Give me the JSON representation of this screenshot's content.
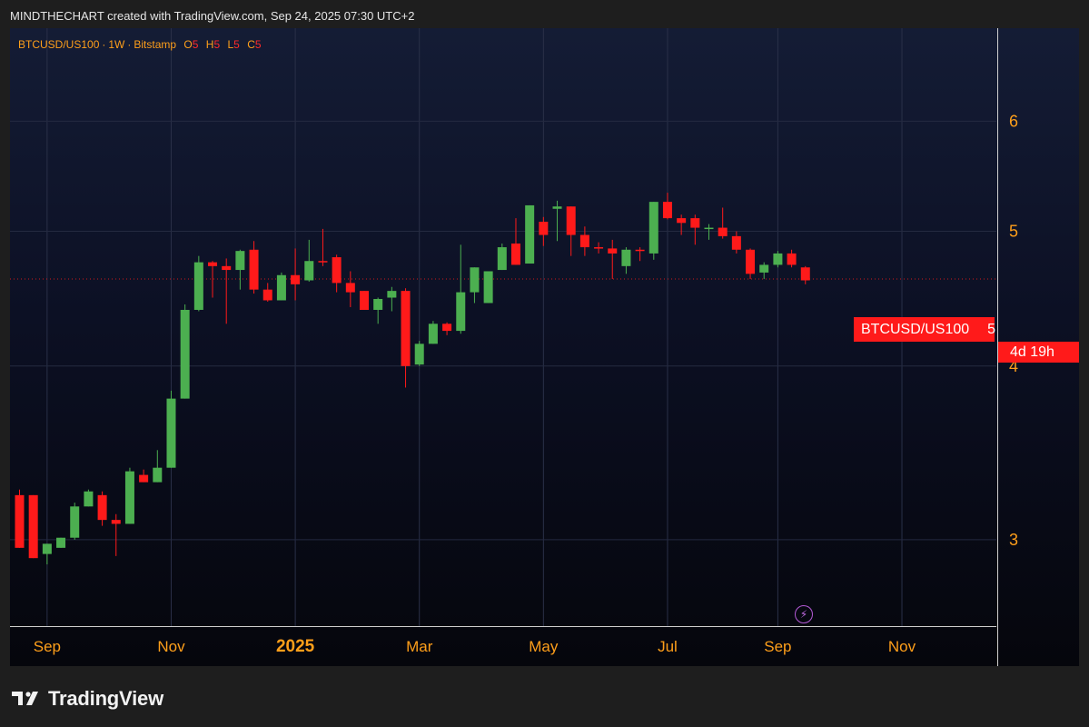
{
  "header": {
    "text": "MINDTHECHART created with TradingView.com, Sep 24, 2025 07:30 UTC+2"
  },
  "legend": {
    "symbol": "BTCUSD/US100",
    "interval": "1W",
    "exchange": "Bitstamp",
    "ohlc": [
      {
        "key": "O",
        "value": "5"
      },
      {
        "key": "H",
        "value": "5"
      },
      {
        "key": "L",
        "value": "5"
      },
      {
        "key": "C",
        "value": "5"
      }
    ]
  },
  "price_label": {
    "symbol": "BTCUSD/US100",
    "value": "5",
    "countdown": "4d 19h"
  },
  "footer": {
    "brand": "TradingView",
    "logo_icon": "tradingview-logo-icon"
  },
  "colors": {
    "up": "#4caf50",
    "down": "#ff1a1a",
    "axis_text": "#ff9f1a",
    "accent": "#ff1a1a"
  },
  "chart_data": {
    "type": "candlestick",
    "interval": "1W",
    "y_scale": "log",
    "y_ticks": [
      3,
      4,
      5,
      6
    ],
    "ylim": [
      2.6,
      7.0
    ],
    "x_ticks": [
      {
        "label": "Sep",
        "index": 2,
        "bold": false
      },
      {
        "label": "Nov",
        "index": 11,
        "bold": false
      },
      {
        "label": "2025",
        "index": 20,
        "bold": true
      },
      {
        "label": "Mar",
        "index": 29,
        "bold": false
      },
      {
        "label": "May",
        "index": 38,
        "bold": false
      },
      {
        "label": "Jul",
        "index": 47,
        "bold": false
      },
      {
        "label": "Sep",
        "index": 55,
        "bold": false
      },
      {
        "label": "Nov",
        "index": 64,
        "bold": false
      }
    ],
    "last_price": 4.62,
    "candles": [
      [
        3.23,
        2.96,
        3.26,
        2.96
      ],
      [
        3.23,
        2.91,
        3.23,
        2.91
      ],
      [
        2.93,
        2.98,
        2.98,
        2.88
      ],
      [
        2.96,
        3.01,
        3.01,
        2.96
      ],
      [
        3.01,
        3.17,
        3.19,
        3.0
      ],
      [
        3.17,
        3.25,
        3.26,
        3.17
      ],
      [
        3.23,
        3.1,
        3.25,
        3.07
      ],
      [
        3.1,
        3.08,
        3.13,
        2.92
      ],
      [
        3.08,
        3.36,
        3.38,
        3.08
      ],
      [
        3.34,
        3.3,
        3.37,
        3.3
      ],
      [
        3.3,
        3.38,
        3.48,
        3.3
      ],
      [
        3.38,
        3.79,
        3.84,
        3.38
      ],
      [
        3.79,
        4.39,
        4.43,
        3.79
      ],
      [
        4.39,
        4.75,
        4.8,
        4.38
      ],
      [
        4.75,
        4.72,
        4.76,
        4.48
      ],
      [
        4.72,
        4.69,
        4.78,
        4.29
      ],
      [
        4.69,
        4.84,
        4.85,
        4.54
      ],
      [
        4.85,
        4.54,
        4.92,
        4.51
      ],
      [
        4.54,
        4.46,
        4.59,
        4.45
      ],
      [
        4.46,
        4.65,
        4.67,
        4.46
      ],
      [
        4.65,
        4.58,
        4.86,
        4.46
      ],
      [
        4.61,
        4.76,
        4.93,
        4.6
      ],
      [
        4.76,
        4.75,
        5.02,
        4.72
      ],
      [
        4.79,
        4.59,
        4.81,
        4.52
      ],
      [
        4.59,
        4.52,
        4.68,
        4.41
      ],
      [
        4.53,
        4.39,
        4.53,
        4.39
      ],
      [
        4.39,
        4.47,
        4.48,
        4.29
      ],
      [
        4.48,
        4.53,
        4.56,
        4.38
      ],
      [
        4.53,
        4.0,
        4.55,
        3.86
      ],
      [
        4.01,
        4.15,
        4.17,
        4.0
      ],
      [
        4.15,
        4.29,
        4.31,
        4.15
      ],
      [
        4.29,
        4.24,
        4.3,
        4.21
      ],
      [
        4.24,
        4.52,
        4.89,
        4.22
      ],
      [
        4.52,
        4.71,
        4.71,
        4.44
      ],
      [
        4.44,
        4.68,
        4.68,
        4.44
      ],
      [
        4.69,
        4.87,
        4.9,
        4.69
      ],
      [
        4.9,
        4.73,
        5.11,
        4.73
      ],
      [
        4.74,
        5.22,
        5.22,
        4.74
      ],
      [
        5.08,
        4.97,
        5.12,
        4.88
      ],
      [
        5.19,
        5.21,
        5.26,
        4.92
      ],
      [
        5.21,
        4.97,
        5.21,
        4.8
      ],
      [
        4.97,
        4.87,
        5.04,
        4.8
      ],
      [
        4.87,
        4.86,
        4.91,
        4.82
      ],
      [
        4.86,
        4.82,
        4.93,
        4.62
      ],
      [
        4.72,
        4.85,
        4.87,
        4.66
      ],
      [
        4.85,
        4.84,
        4.87,
        4.76
      ],
      [
        4.82,
        5.25,
        5.25,
        4.77
      ],
      [
        5.25,
        5.11,
        5.33,
        5.1
      ],
      [
        5.11,
        5.07,
        5.14,
        4.97
      ],
      [
        5.11,
        5.03,
        5.14,
        4.89
      ],
      [
        5.02,
        5.03,
        5.06,
        4.93
      ],
      [
        5.03,
        4.96,
        5.2,
        4.94
      ],
      [
        4.96,
        4.85,
        5.0,
        4.82
      ],
      [
        4.85,
        4.66,
        4.86,
        4.62
      ],
      [
        4.67,
        4.73,
        4.75,
        4.62
      ],
      [
        4.73,
        4.82,
        4.84,
        4.71
      ],
      [
        4.82,
        4.73,
        4.85,
        4.71
      ],
      [
        4.71,
        4.61,
        4.72,
        4.58
      ]
    ]
  }
}
